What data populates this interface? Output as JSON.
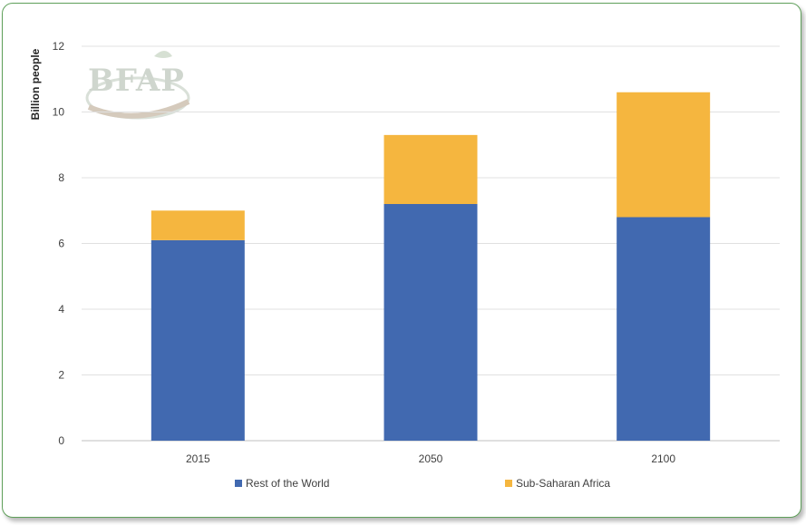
{
  "chart_data": {
    "type": "bar",
    "stacked": true,
    "categories": [
      "2015",
      "2050",
      "2100"
    ],
    "series": [
      {
        "name": "Rest of the World",
        "values": [
          6.1,
          7.2,
          6.8
        ],
        "color": "#4169b0"
      },
      {
        "name": "Sub-Saharan Africa",
        "values": [
          0.9,
          2.1,
          3.8
        ],
        "color": "#f5b63f"
      }
    ],
    "ylabel": "Billion people",
    "ylim": [
      0,
      12
    ],
    "yticks": [
      0,
      2,
      4,
      6,
      8,
      10,
      12
    ],
    "grid": true,
    "legend": "bottom"
  },
  "watermark": {
    "text": "BFAP"
  }
}
